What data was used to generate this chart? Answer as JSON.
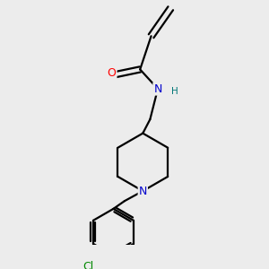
{
  "background_color": "#ececec",
  "bond_color": "#000000",
  "atom_colors": {
    "O": "#ff0000",
    "N": "#0000cc",
    "Cl": "#008800",
    "H": "#007777",
    "C": "#000000"
  },
  "figsize": [
    3.0,
    3.0
  ],
  "dpi": 100,
  "xlim": [
    -1.6,
    1.6
  ],
  "ylim": [
    -2.2,
    2.2
  ]
}
